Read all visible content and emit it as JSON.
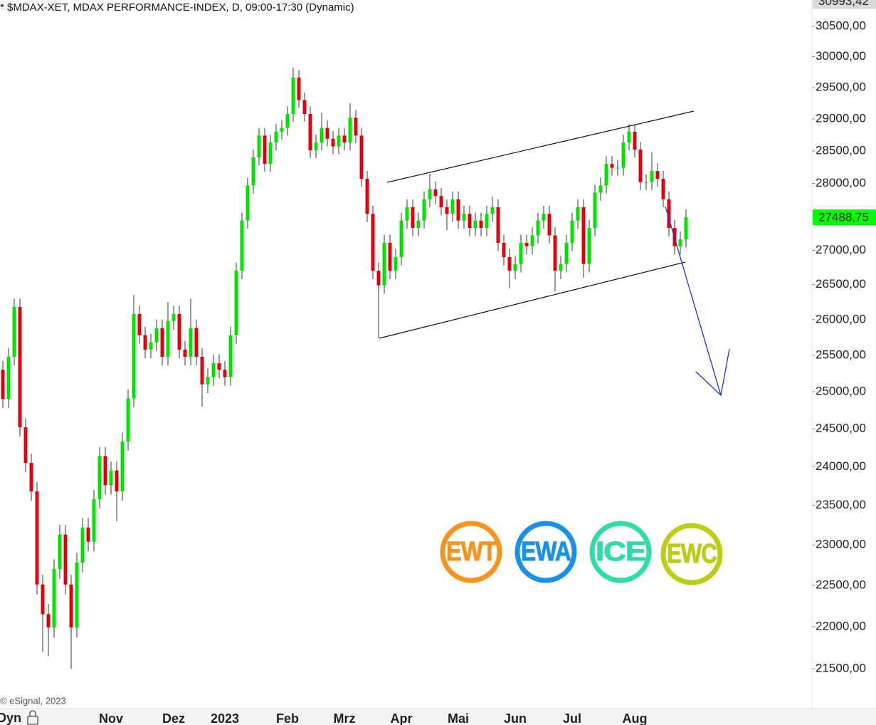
{
  "chart_data": {
    "type": "candlestick",
    "title": "* $MDAX-XET, MDAX PERFORMANCE-INDEX, D, 09:00-17:30 (Dynamic)",
    "watermark": "© eSignal, 2023",
    "x_axis_label": "Dyn",
    "categories": [
      null,
      null,
      null,
      null,
      null,
      null,
      null,
      null,
      null,
      null,
      null,
      null,
      null,
      null,
      null,
      null,
      null,
      null,
      null,
      "Nov",
      null,
      null,
      null,
      null,
      null,
      null,
      null,
      null,
      null,
      null,
      "Dez",
      null,
      null,
      null,
      null,
      null,
      null,
      null,
      null,
      "2023",
      null,
      null,
      null,
      null,
      null,
      null,
      null,
      null,
      null,
      null,
      "Feb",
      null,
      null,
      null,
      null,
      null,
      null,
      null,
      null,
      null,
      "Mrz",
      null,
      null,
      null,
      null,
      null,
      null,
      null,
      null,
      null,
      "Apr",
      null,
      null,
      null,
      null,
      null,
      null,
      null,
      null,
      null,
      "Mai",
      null,
      null,
      null,
      null,
      null,
      null,
      null,
      null,
      null,
      "Jun",
      null,
      null,
      null,
      null,
      null,
      null,
      null,
      null,
      null,
      "Jul",
      null,
      null,
      null,
      null,
      null,
      null,
      null,
      null,
      null,
      null,
      "Aug",
      null,
      null,
      null,
      null,
      null,
      null,
      null,
      null,
      null
    ],
    "open": [
      25300,
      24900,
      25480,
      26180,
      24520,
      24050,
      23680,
      22510,
      22150,
      21990,
      22700,
      23130,
      22510,
      21990,
      22780,
      23220,
      23040,
      23580,
      24140,
      23760,
      23950,
      23680,
      24330,
      24910,
      26080,
      25780,
      25580,
      25680,
      25880,
      25480,
      25980,
      26080,
      25580,
      25480,
      25880,
      25480,
      25100,
      25200,
      25390,
      25300,
      25200,
      25780,
      26700,
      27440,
      27970,
      28400,
      28740,
      28300,
      28630,
      28800,
      28860,
      29080,
      29660,
      29300,
      29080,
      28510,
      28630,
      28860,
      28690,
      28570,
      28740,
      28630,
      29020,
      28740,
      28070,
      27540,
      26700,
      26490,
      27110,
      26700,
      26900,
      27440,
      27640,
      27330,
      27440,
      27760,
      27910,
      27810,
      27640,
      27540,
      27760,
      27440,
      27540,
      27330,
      27440,
      27330,
      27540,
      27640,
      27110,
      26900,
      26700,
      26800,
      27110,
      27060,
      27220,
      27440,
      27540,
      27220,
      26700,
      26800,
      27110,
      27440,
      27640,
      26800,
      27330,
      27860,
      27970,
      28300,
      28240,
      28240,
      28630,
      28800,
      28520,
      28020,
      28020,
      28190,
      28070,
      27760,
      27330,
      27060,
      27160
    ],
    "high": [
      25420,
      25600,
      26300,
      26300,
      24640,
      24170,
      23800,
      22630,
      22270,
      22820,
      23250,
      23250,
      22630,
      22900,
      23340,
      23340,
      23700,
      24260,
      24260,
      24070,
      24070,
      24450,
      25030,
      26350,
      26200,
      25900,
      25800,
      26000,
      26000,
      26250,
      26200,
      26200,
      25700,
      26300,
      26000,
      25600,
      25320,
      25510,
      25510,
      25420,
      25900,
      26820,
      27560,
      28090,
      28520,
      28860,
      28860,
      28750,
      28920,
      28980,
      29200,
      29820,
      29780,
      29420,
      29200,
      28750,
      29100,
      28980,
      28810,
      28860,
      28860,
      29250,
      29140,
      28860,
      28190,
      27660,
      26820,
      27230,
      27230,
      27020,
      27560,
      27760,
      27760,
      27560,
      27880,
      28150,
      28030,
      27930,
      27760,
      27880,
      27880,
      27660,
      27660,
      27560,
      27560,
      27660,
      27800,
      27760,
      27230,
      27020,
      26920,
      27230,
      27230,
      27340,
      27560,
      27660,
      27660,
      27340,
      26920,
      27230,
      27560,
      27760,
      27760,
      27450,
      27980,
      28090,
      28420,
      28420,
      28360,
      28750,
      28920,
      28920,
      28640,
      28140,
      28480,
      28310,
      28190,
      27880,
      27450,
      27280,
      27610
    ],
    "low": [
      24780,
      24780,
      25360,
      24400,
      23930,
      23560,
      22390,
      21700,
      21650,
      21870,
      22580,
      22390,
      21500,
      21870,
      22660,
      22920,
      22920,
      23460,
      23640,
      23640,
      23300,
      23560,
      24210,
      24790,
      25660,
      25460,
      25460,
      25560,
      25360,
      25360,
      25860,
      25460,
      25360,
      25360,
      25360,
      24800,
      24980,
      25080,
      25180,
      25080,
      25080,
      25660,
      26580,
      27320,
      27850,
      28280,
      28180,
      28180,
      28510,
      28680,
      28740,
      28960,
      29180,
      28960,
      28390,
      28390,
      28510,
      28570,
      28450,
      28450,
      28510,
      28510,
      28620,
      27950,
      27420,
      26580,
      25740,
      26370,
      26580,
      26580,
      26780,
      27320,
      27210,
      27210,
      27320,
      27640,
      27690,
      27520,
      27300,
      27420,
      27320,
      27320,
      27210,
      27210,
      27210,
      27210,
      27420,
      26990,
      26780,
      26450,
      26580,
      26680,
      26940,
      26940,
      27100,
      27320,
      27100,
      26400,
      26580,
      26680,
      26990,
      27320,
      26600,
      26680,
      27210,
      27740,
      27850,
      28120,
      28120,
      28120,
      28510,
      28400,
      27900,
      27900,
      27900,
      27950,
      27640,
      27210,
      26940,
      26940,
      27040
    ],
    "close": [
      24900,
      25480,
      26180,
      24520,
      24050,
      23680,
      22510,
      22150,
      21990,
      22700,
      23130,
      22510,
      21990,
      22780,
      23220,
      23040,
      23580,
      24140,
      23760,
      23950,
      23680,
      24330,
      24910,
      26080,
      25780,
      25580,
      25680,
      25880,
      25480,
      25980,
      26080,
      25580,
      25480,
      25880,
      25480,
      25100,
      25200,
      25390,
      25300,
      25200,
      25780,
      26700,
      27440,
      27970,
      28400,
      28740,
      28300,
      28630,
      28800,
      28860,
      29080,
      29660,
      29300,
      29080,
      28510,
      28630,
      28860,
      28690,
      28570,
      28740,
      28630,
      29020,
      28740,
      28070,
      27540,
      26700,
      26490,
      27110,
      26700,
      26900,
      27440,
      27640,
      27330,
      27440,
      27760,
      27910,
      27810,
      27640,
      27540,
      27760,
      27440,
      27540,
      27330,
      27440,
      27330,
      27540,
      27640,
      27110,
      26900,
      26700,
      26800,
      27110,
      27060,
      27220,
      27440,
      27540,
      27220,
      26700,
      26800,
      27110,
      27440,
      27640,
      26800,
      27330,
      27860,
      27970,
      28300,
      28240,
      28240,
      28630,
      28800,
      28520,
      28020,
      28020,
      28190,
      28070,
      27760,
      27330,
      27060,
      27160,
      27488.75
    ],
    "up_color": "#00e600",
    "down_color": "#e0000b",
    "ylim": [
      21040,
      30940
    ],
    "log_scale": true,
    "grid": false,
    "yticks": [
      {
        "value": 30500,
        "label": "30500,00"
      },
      {
        "value": 30000,
        "label": "30000,00"
      },
      {
        "value": 29500,
        "label": "29500,00"
      },
      {
        "value": 29000,
        "label": "29000,00"
      },
      {
        "value": 28500,
        "label": "28500,00"
      },
      {
        "value": 28000,
        "label": "28000,00"
      },
      {
        "value": 27000,
        "label": "27000,00"
      },
      {
        "value": 26500,
        "label": "26500,00"
      },
      {
        "value": 26000,
        "label": "26000,00"
      },
      {
        "value": 25500,
        "label": "25500,00"
      },
      {
        "value": 25000,
        "label": "25000,00"
      },
      {
        "value": 24500,
        "label": "24500,00"
      },
      {
        "value": 24000,
        "label": "24000,00"
      },
      {
        "value": 23500,
        "label": "23500,00"
      },
      {
        "value": 23000,
        "label": "23000,00"
      },
      {
        "value": 22500,
        "label": "22500,00"
      },
      {
        "value": 22000,
        "label": "22000,00"
      },
      {
        "value": 21500,
        "label": "21500,00"
      }
    ],
    "price_markers": [
      {
        "value": 30993.42,
        "label": "30993,42",
        "color": "#d9d9d9"
      },
      {
        "value": 27488.75,
        "label": "27488,75",
        "color": "#00ff00"
      }
    ]
  },
  "logos": [
    {
      "label": "EWT",
      "color": "#f7941d"
    },
    {
      "label": "EWA",
      "color": "#1a90e6"
    },
    {
      "label": "ICE",
      "color": "#2fdca6"
    },
    {
      "label": "EWC",
      "color": "#bccd14"
    }
  ]
}
